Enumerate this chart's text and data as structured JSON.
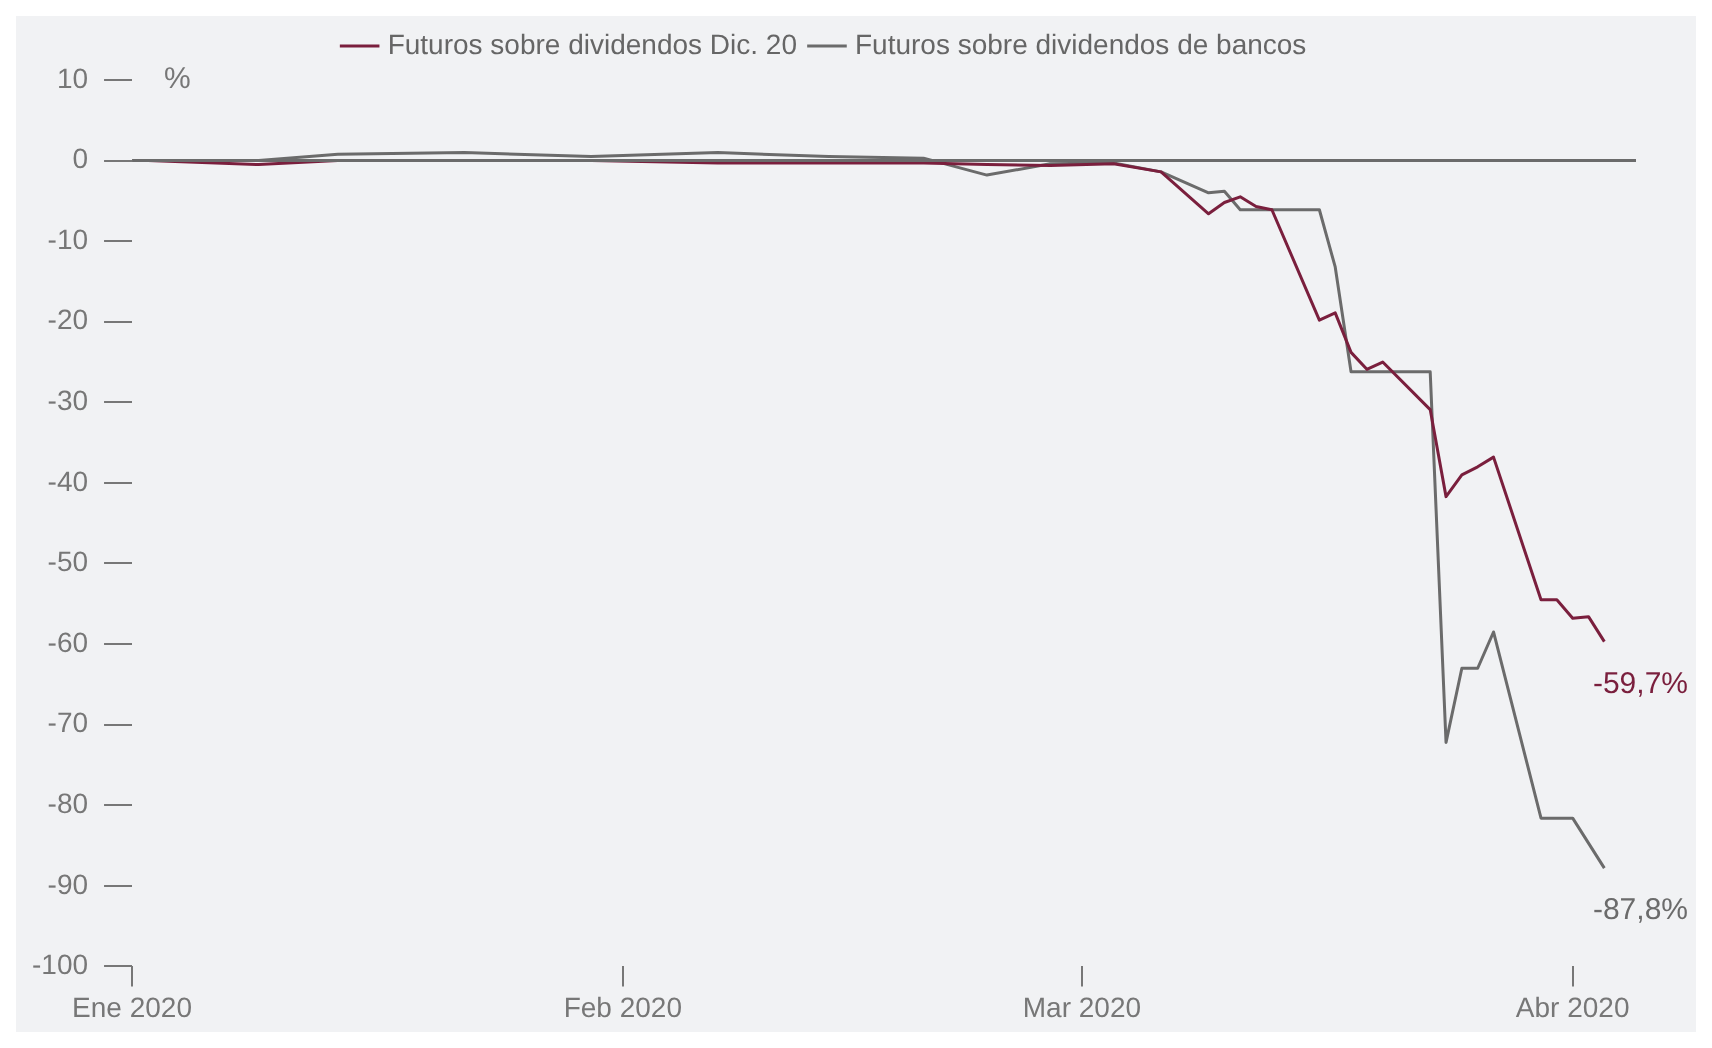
{
  "chart_data": {
    "type": "line",
    "ylabel": "%",
    "x": [
      "2020-01-02",
      "2020-01-09",
      "2020-01-14",
      "2020-01-22",
      "2020-01-30",
      "2020-02-07",
      "2020-02-14",
      "2020-02-20",
      "2020-02-24",
      "2020-02-28",
      "2020-03-03",
      "2020-03-06",
      "2020-03-09",
      "2020-03-10",
      "2020-03-11",
      "2020-03-12",
      "2020-03-13",
      "2020-03-16",
      "2020-03-17",
      "2020-03-18",
      "2020-03-19",
      "2020-03-20",
      "2020-03-23",
      "2020-03-24",
      "2020-03-25",
      "2020-03-26",
      "2020-03-27",
      "2020-03-30",
      "2020-03-31",
      "2020-04-01",
      "2020-04-02",
      "2020-04-03"
    ],
    "series": [
      {
        "name": "Futuros sobre dividendos Dic. 20",
        "color": "#7a1f3d",
        "values": [
          0,
          -0.5,
          0,
          0,
          0,
          -0.3,
          -0.3,
          -0.3,
          -0.5,
          -0.6,
          -0.4,
          -1.4,
          -6.6,
          -5.2,
          -4.5,
          -5.7,
          -6.1,
          -19.8,
          -18.9,
          -23.8,
          -25.9,
          -25,
          -30.9,
          -41.7,
          -39,
          -38,
          -36.8,
          -54.5,
          -54.5,
          -56.8,
          -56.6,
          -59.7
        ]
      },
      {
        "name": "Futuros sobre dividendos de bancos",
        "color": "#6b6b6b",
        "values": [
          0,
          0,
          0.8,
          1.0,
          0.5,
          1.0,
          0.5,
          0.3,
          -1.8,
          -0.4,
          -0.3,
          -1.4,
          -4,
          -3.8,
          -6.1,
          -6.1,
          -6.1,
          -6.1,
          -13.2,
          -26.2,
          -26.2,
          -26.2,
          -26.2,
          -72.2,
          -63,
          -63,
          -58.5,
          -81.6,
          -81.6,
          -81.6,
          null,
          -87.8
        ]
      }
    ],
    "xlim": [
      "2020-01-01",
      "2020-04-05"
    ],
    "xticks": [
      {
        "value": "2020-01-01",
        "label": "Ene 2020"
      },
      {
        "value": "2020-02-01",
        "label": "Feb 2020"
      },
      {
        "value": "2020-03-01",
        "label": "Mar 2020"
      },
      {
        "value": "2020-04-01",
        "label": "Abr 2020"
      }
    ],
    "ylim": [
      -100,
      10
    ],
    "yticks": [
      -100,
      -90,
      -80,
      -70,
      -60,
      -50,
      -40,
      -30,
      -20,
      -10,
      0,
      10
    ],
    "ref_lines": [
      {
        "axis": "y",
        "value": 0,
        "color": "#6b6b6b"
      }
    ],
    "annotations": [
      {
        "text": "-59,7%",
        "x": "2020-04-03",
        "y": -59.7
      },
      {
        "text": "-87,8%",
        "x": "2020-04-03",
        "y": -87.8
      }
    ],
    "grid": false,
    "legend": "top",
    "marker": "none",
    "line_style": "solid"
  }
}
